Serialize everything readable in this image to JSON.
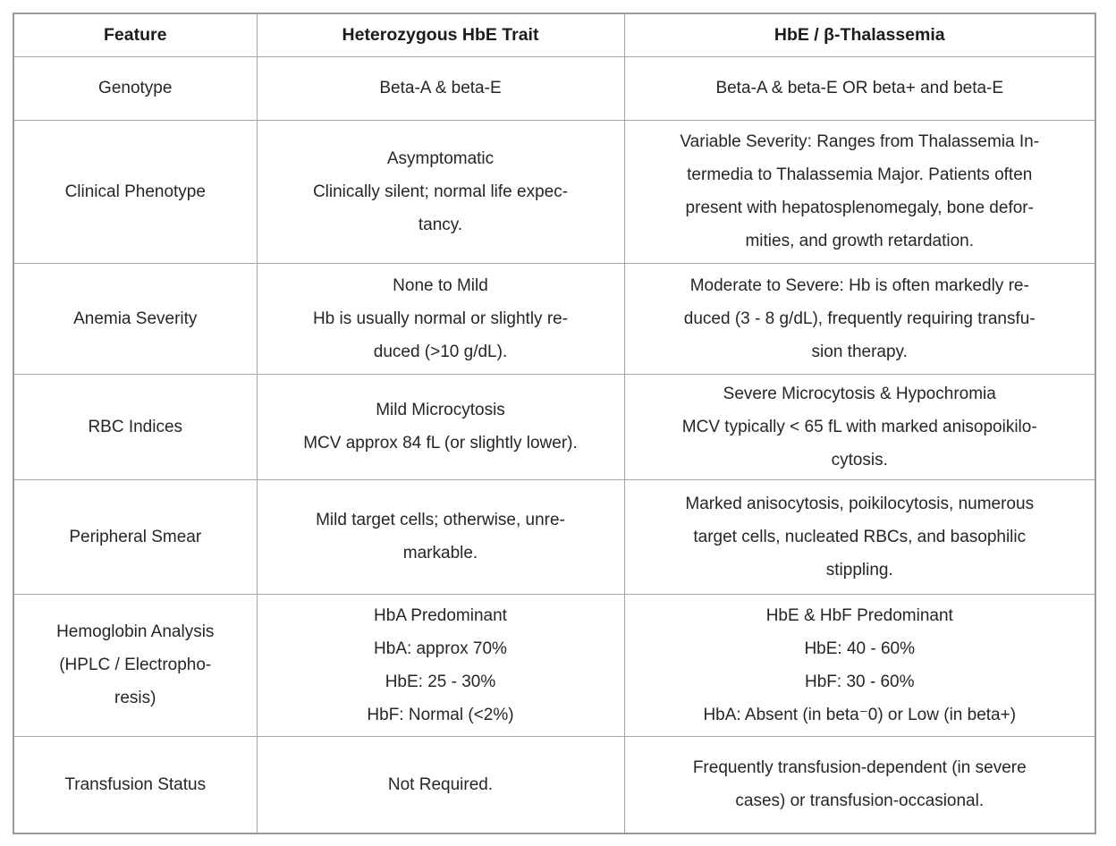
{
  "table": {
    "columns": [
      "Feature",
      "Heterozygous HbE Trait",
      "HbE / β-Thalassemia"
    ],
    "rows": [
      {
        "cells": [
          "Genotype",
          "Beta-A & beta-E",
          "Beta-A & beta-E OR beta+ and beta-E"
        ]
      },
      {
        "cells": [
          "Clinical Phenotype",
          [
            "Asymptomatic",
            "Clinically silent; normal life expec-",
            "tancy."
          ],
          [
            "Variable Severity: Ranges from Thalassemia In-",
            "termedia to Thalassemia Major. Patients often",
            "present with hepatosplenomegaly, bone defor-",
            "mities, and growth retardation."
          ]
        ]
      },
      {
        "cells": [
          "Anemia Severity",
          [
            "None to Mild",
            "Hb is usually normal or slightly re-",
            "duced (>10 g/dL)."
          ],
          [
            "Moderate to Severe: Hb is often markedly re-",
            "duced (3 - 8 g/dL), frequently requiring transfu-",
            "sion therapy."
          ]
        ]
      },
      {
        "cells": [
          "RBC Indices",
          [
            "Mild Microcytosis",
            "MCV approx 84 fL (or slightly lower)."
          ],
          [
            "Severe Microcytosis & Hypochromia",
            "MCV typically < 65 fL with marked anisopoikilo-",
            "cytosis."
          ]
        ]
      },
      {
        "cells": [
          "Peripheral Smear",
          [
            "Mild target cells; otherwise, unre-",
            "markable."
          ],
          [
            "Marked anisocytosis, poikilocytosis, numerous",
            "target cells, nucleated RBCs, and basophilic",
            "stippling."
          ]
        ]
      },
      {
        "cells": [
          [
            "Hemoglobin Analysis",
            "(HPLC / Electropho-",
            "resis)"
          ],
          [
            "HbA Predominant",
            "HbA: approx 70%",
            "HbE: 25 - 30%",
            "HbF: Normal (<2%)"
          ],
          [
            "HbE & HbF Predominant",
            "HbE: 40 - 60%",
            "HbF: 30 - 60%",
            "HbA: Absent (in beta⁻0) or Low (in beta+)"
          ]
        ]
      },
      {
        "cells": [
          "Transfusion Status",
          "Not Required.",
          [
            "Frequently transfusion-dependent (in severe",
            "cases) or transfusion-occasional."
          ]
        ]
      }
    ]
  },
  "colors": {
    "border_inner": "#a6a6a6",
    "border_outer": "#9a9a9a",
    "text": "#262626",
    "background": "#ffffff"
  }
}
